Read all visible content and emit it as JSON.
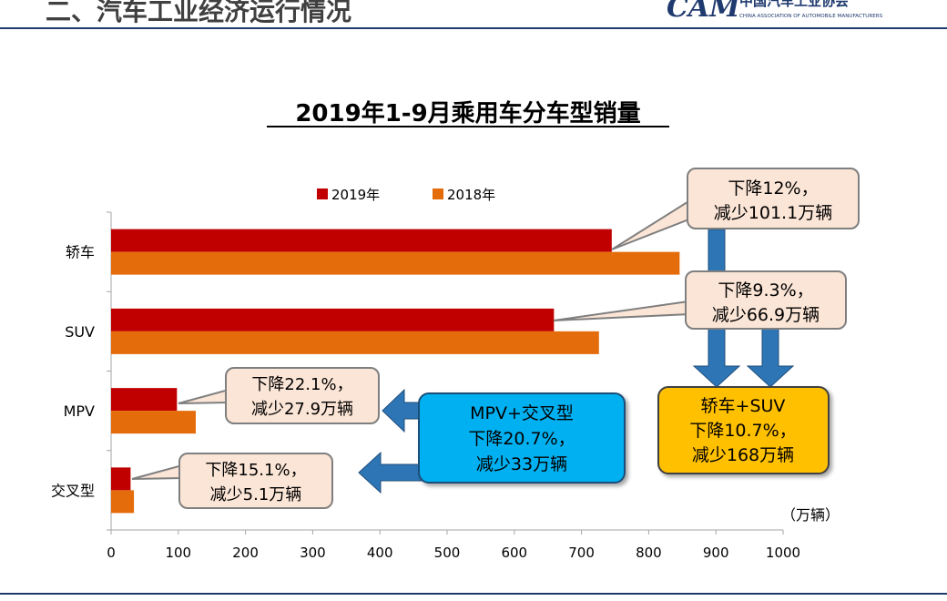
{
  "header": {
    "section_title": "二、汽车工业经济运行情况",
    "logo_mark": "CAM",
    "org_name_cn": "中国汽车工业协会",
    "org_name_en": "CHINA ASSOCIATION OF AUTOMOBILE MANUFACTURERS"
  },
  "colors": {
    "series_2019": "#C00000",
    "series_2018": "#E46C0A",
    "callout_fill": "#FBE5D6",
    "callout_stroke": "#7F7F7F",
    "arrow_blue": "#2E75B6",
    "blue_box_fill": "#00B0F0",
    "yellow_box_fill": "#FFC000",
    "logo_blue": "#1F3A6E"
  },
  "chart_data": {
    "type": "bar",
    "orientation": "horizontal",
    "title": "2019年1-9月乘用车分车型销量",
    "categories": [
      "轿车",
      "SUV",
      "MPV",
      "交叉型"
    ],
    "series": [
      {
        "name": "2019年",
        "values": [
          745,
          659,
          98,
          29
        ]
      },
      {
        "name": "2018年",
        "values": [
          846,
          726,
          126,
          34
        ]
      }
    ],
    "x_ticks": [
      "0",
      "100",
      "200",
      "300",
      "400",
      "500",
      "600",
      "700",
      "800",
      "900",
      "1000"
    ],
    "xlim": [
      0,
      1000
    ],
    "unit_label": "（万辆）",
    "legend_position": "top",
    "grid": false
  },
  "annotations": {
    "sedan": [
      "下降12%，",
      "减少101.1万辆"
    ],
    "suv": [
      "下降9.3%，",
      "减少66.9万辆"
    ],
    "mpv": [
      "下降22.1%，",
      "减少27.9万辆"
    ],
    "crossover": [
      "下降15.1%，",
      "减少5.1万辆"
    ],
    "mpv_cross_total": [
      "MPV+交叉型",
      "下降20.7%，",
      "减少33万辆"
    ],
    "sedan_suv_total": [
      "轿车+SUV",
      "下降10.7%，",
      "减少168万辆"
    ]
  }
}
